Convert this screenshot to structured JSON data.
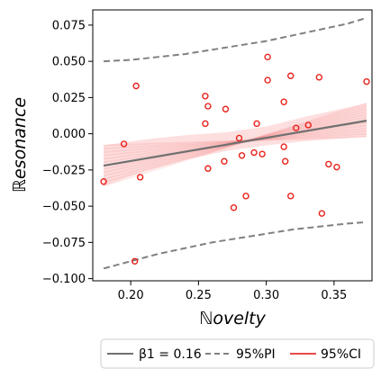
{
  "chart_data": {
    "type": "scatter",
    "xlabel": "ℕovelty",
    "ylabel": "ℝesonance",
    "xlim": [
      0.172,
      0.378
    ],
    "ylim": [
      -0.1015,
      0.0855
    ],
    "x_ticks": [
      0.2,
      0.25,
      0.3,
      0.35
    ],
    "x_tick_labels": [
      "0.20",
      "0.25",
      "0.30",
      "0.35"
    ],
    "y_ticks": [
      -0.1,
      -0.075,
      -0.05,
      -0.025,
      0.0,
      0.025,
      0.05,
      0.075
    ],
    "y_tick_labels": [
      "−0.100",
      "−0.075",
      "−0.050",
      "−0.025",
      "0.000",
      "0.025",
      "0.050",
      "0.075"
    ],
    "grid": false,
    "points": [
      {
        "x": 0.18,
        "y": -0.033
      },
      {
        "x": 0.195,
        "y": -0.007
      },
      {
        "x": 0.203,
        "y": -0.088
      },
      {
        "x": 0.204,
        "y": 0.033
      },
      {
        "x": 0.207,
        "y": -0.03
      },
      {
        "x": 0.255,
        "y": 0.026
      },
      {
        "x": 0.255,
        "y": 0.007
      },
      {
        "x": 0.257,
        "y": 0.019
      },
      {
        "x": 0.257,
        "y": -0.024
      },
      {
        "x": 0.27,
        "y": 0.017
      },
      {
        "x": 0.269,
        "y": -0.019
      },
      {
        "x": 0.276,
        "y": -0.051
      },
      {
        "x": 0.28,
        "y": -0.003
      },
      {
        "x": 0.282,
        "y": -0.015
      },
      {
        "x": 0.285,
        "y": -0.043
      },
      {
        "x": 0.291,
        "y": -0.013
      },
      {
        "x": 0.293,
        "y": 0.007
      },
      {
        "x": 0.297,
        "y": -0.014
      },
      {
        "x": 0.301,
        "y": 0.053
      },
      {
        "x": 0.301,
        "y": 0.037
      },
      {
        "x": 0.313,
        "y": 0.022
      },
      {
        "x": 0.313,
        "y": -0.009
      },
      {
        "x": 0.314,
        "y": -0.019
      },
      {
        "x": 0.318,
        "y": 0.04
      },
      {
        "x": 0.318,
        "y": -0.043
      },
      {
        "x": 0.322,
        "y": 0.004
      },
      {
        "x": 0.331,
        "y": 0.006
      },
      {
        "x": 0.339,
        "y": 0.039
      },
      {
        "x": 0.341,
        "y": -0.055
      },
      {
        "x": 0.346,
        "y": -0.021
      },
      {
        "x": 0.352,
        "y": -0.023
      },
      {
        "x": 0.374,
        "y": 0.036
      }
    ],
    "fit_line": {
      "x": [
        0.18,
        0.374
      ],
      "y": [
        -0.022,
        0.009
      ]
    },
    "prediction_interval": {
      "x": [
        0.18,
        0.2,
        0.22,
        0.24,
        0.26,
        0.28,
        0.3,
        0.32,
        0.34,
        0.36,
        0.374
      ],
      "upper": [
        0.05,
        0.051,
        0.053,
        0.055,
        0.058,
        0.061,
        0.064,
        0.068,
        0.072,
        0.076,
        0.08
      ],
      "lower": [
        -0.093,
        -0.088,
        -0.083,
        -0.079,
        -0.075,
        -0.072,
        -0.069,
        -0.066,
        -0.064,
        -0.062,
        -0.061
      ]
    },
    "confidence_band": {
      "x": [
        0.18,
        0.21,
        0.24,
        0.27,
        0.3,
        0.33,
        0.374
      ],
      "upper": [
        -0.008,
        -0.004,
        -0.001,
        0.001,
        0.005,
        0.012,
        0.021
      ],
      "lower": [
        -0.036,
        -0.026,
        -0.018,
        -0.012,
        -0.008,
        -0.005,
        -0.002
      ]
    },
    "legend": {
      "placement": "bottom-center",
      "entries": [
        {
          "label": "β1 = 0.16",
          "style": "line",
          "color": "#707070"
        },
        {
          "label": "95%PI",
          "style": "dashed",
          "color": "#808080"
        },
        {
          "label": "95%CI",
          "style": "line",
          "color": "#e84a4a"
        }
      ]
    },
    "colors": {
      "points": "#e8221b",
      "fit": "#707070",
      "pi": "#808080",
      "ci": "#f25050"
    }
  }
}
